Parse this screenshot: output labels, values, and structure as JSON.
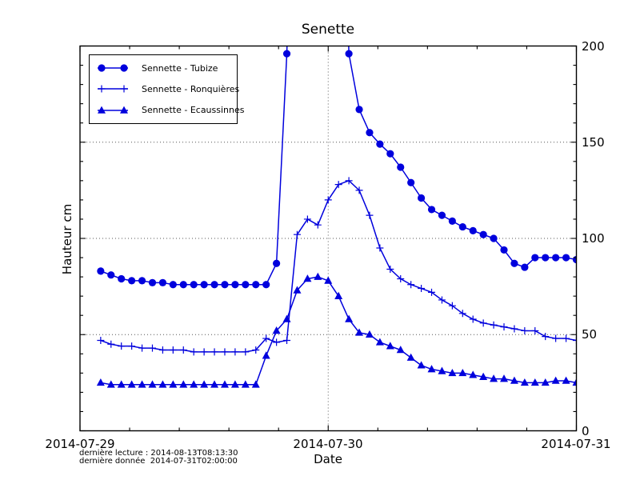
{
  "figure": {
    "background": "#ffffff",
    "footnote_line1": "dernière lecture : 2014-08-13T08:13:30",
    "footnote_line2": "dernière donnée  2014-07-31T02:00:00"
  },
  "colors": {
    "series_blue": "#0000dd",
    "axis": "#000000",
    "grid": "#555555",
    "background": "#ffffff"
  },
  "chart_data": {
    "type": "line",
    "title": "Senette",
    "xlabel": "Date",
    "ylabel": "Hauteur cm",
    "x_tick_labels": [
      "2014-07-29",
      "2014-07-30",
      "2014-07-31"
    ],
    "y_ticks": [
      0,
      50,
      100,
      150,
      200
    ],
    "ylim": [
      0,
      200
    ],
    "x_range_hours": 48,
    "x_start_label": "2014-07-29T00:00",
    "points_start_hour": 2,
    "points_step_hours": 1,
    "grid": "dotted horizontal lines at 50/100/150, dotted vertical line at 2014-07-30",
    "legend_position": "upper left",
    "offscale_note": "Sennette - Tubize values from 21:00 Jul 29 to 01:00 Jul 30 exceed the 200 cm axis maximum (line clipped at plot top); null marks those off-scale points.",
    "series": [
      {
        "name": "Sennette - Tubize",
        "marker": "circle",
        "color": "#0000dd",
        "values": [
          83,
          81,
          79,
          78,
          78,
          77,
          77,
          76,
          76,
          76,
          76,
          76,
          76,
          76,
          76,
          76,
          76,
          87,
          196,
          null,
          null,
          null,
          null,
          null,
          196,
          167,
          155,
          149,
          144,
          137,
          129,
          121,
          115,
          112,
          109,
          106,
          104,
          102,
          100,
          94,
          87,
          85,
          90,
          90,
          90,
          90,
          89
        ]
      },
      {
        "name": "Sennette - Ronquières",
        "marker": "plus",
        "color": "#0000dd",
        "values": [
          47,
          45,
          44,
          44,
          43,
          43,
          42,
          42,
          42,
          41,
          41,
          41,
          41,
          41,
          41,
          42,
          48,
          46,
          47,
          102,
          110,
          107,
          120,
          128,
          130,
          125,
          112,
          95,
          84,
          79,
          76,
          74,
          72,
          68,
          65,
          61,
          58,
          56,
          55,
          54,
          53,
          52,
          52,
          49,
          48,
          48,
          47
        ]
      },
      {
        "name": "Sennette - Ecaussinnes",
        "marker": "triangle",
        "color": "#0000dd",
        "values": [
          25,
          24,
          24,
          24,
          24,
          24,
          24,
          24,
          24,
          24,
          24,
          24,
          24,
          24,
          24,
          24,
          39,
          52,
          58,
          73,
          79,
          80,
          78,
          70,
          58,
          51,
          50,
          46,
          44,
          42,
          38,
          34,
          32,
          31,
          30,
          30,
          29,
          28,
          27,
          27,
          26,
          25,
          25,
          25,
          26,
          26,
          25
        ]
      }
    ]
  }
}
